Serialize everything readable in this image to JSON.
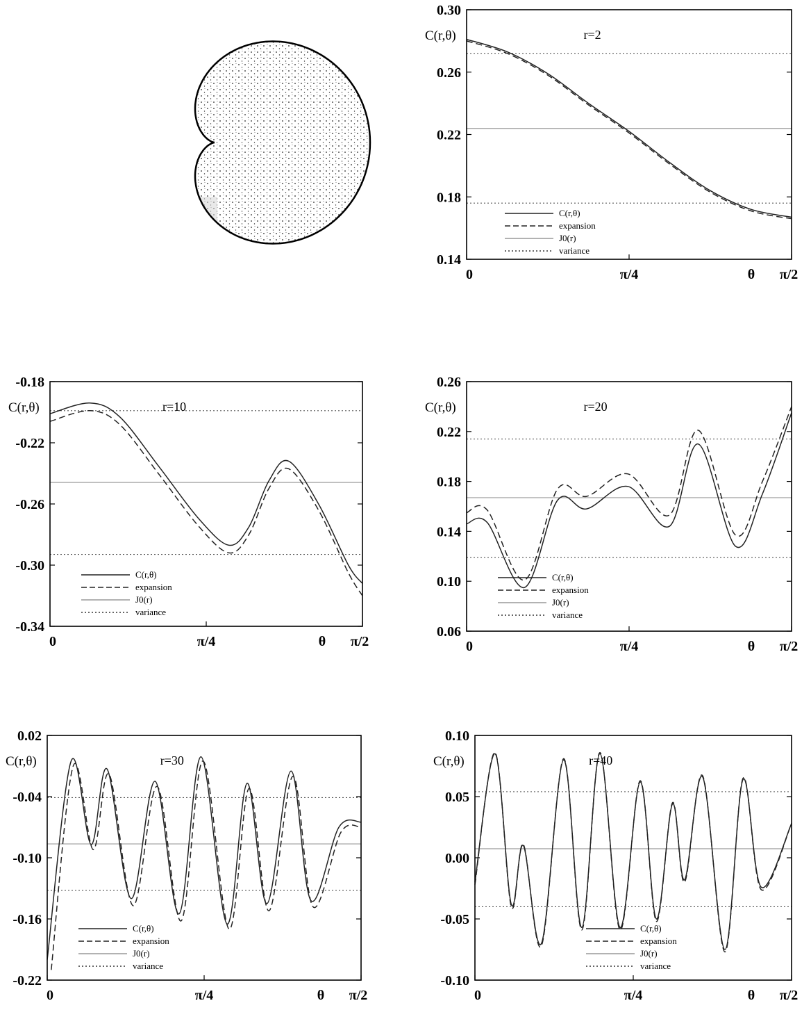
{
  "figure": {
    "cardioid_label": "cardioid billiard figure"
  },
  "chart_data": [
    {
      "id": "r2",
      "type": "line",
      "panel_label": "r=2",
      "ylabel": "C(r,θ)",
      "xlabel": "θ",
      "x_ticks": [
        "0",
        "π/4",
        "π/2"
      ],
      "y_ticks": [
        "0.30",
        "0.26",
        "0.22",
        "0.18",
        "0.14"
      ],
      "xlim": [
        0,
        1.5708
      ],
      "ylim": [
        0.14,
        0.3
      ],
      "hlines": {
        "j0": 0.2239,
        "variance": [
          0.272,
          0.176
        ]
      },
      "legend": [
        "C(r,θ)",
        "expansion",
        "J0(r)",
        "variance"
      ],
      "series": [
        {
          "name": "C(r,θ)",
          "style": "solid",
          "x": [
            0,
            0.1963,
            0.3927,
            0.589,
            0.7854,
            0.9817,
            1.178,
            1.3744,
            1.5708
          ],
          "y": [
            0.281,
            0.273,
            0.259,
            0.24,
            0.222,
            0.202,
            0.184,
            0.172,
            0.167
          ]
        },
        {
          "name": "expansion",
          "style": "dashed",
          "x": [
            0,
            0.1963,
            0.3927,
            0.589,
            0.7854,
            0.9817,
            1.178,
            1.3744,
            1.5708
          ],
          "y": [
            0.28,
            0.272,
            0.258,
            0.239,
            0.221,
            0.201,
            0.183,
            0.171,
            0.166
          ]
        }
      ]
    },
    {
      "id": "r10",
      "type": "line",
      "panel_label": "r=10",
      "ylabel": "C(r,θ)",
      "xlabel": "θ",
      "x_ticks": [
        "0",
        "π/4",
        "π/2"
      ],
      "y_ticks": [
        "-0.18",
        "-0.22",
        "-0.26",
        "-0.30",
        "-0.34"
      ],
      "xlim": [
        0,
        1.5708
      ],
      "ylim": [
        -0.34,
        -0.18
      ],
      "hlines": {
        "j0": -0.2459,
        "variance": [
          -0.199,
          -0.293
        ]
      },
      "legend": [
        "C(r,θ)",
        "expansion",
        "J0(r)",
        "variance"
      ],
      "series": [
        {
          "name": "C(r,θ)",
          "style": "solid",
          "x": [
            0,
            0.2,
            0.35,
            0.55,
            0.75,
            0.9,
            1.0,
            1.1,
            1.2,
            1.35,
            1.5,
            1.5708
          ],
          "y": [
            -0.201,
            -0.194,
            -0.203,
            -0.236,
            -0.27,
            -0.287,
            -0.275,
            -0.245,
            -0.232,
            -0.26,
            -0.3,
            -0.312
          ]
        },
        {
          "name": "expansion",
          "style": "dashed",
          "x": [
            0,
            0.2,
            0.35,
            0.55,
            0.75,
            0.9,
            1.0,
            1.1,
            1.2,
            1.35,
            1.5,
            1.5708
          ],
          "y": [
            -0.206,
            -0.199,
            -0.208,
            -0.241,
            -0.275,
            -0.292,
            -0.28,
            -0.25,
            -0.237,
            -0.264,
            -0.305,
            -0.32
          ]
        }
      ]
    },
    {
      "id": "r20",
      "type": "line",
      "panel_label": "r=20",
      "ylabel": "C(r,θ)",
      "xlabel": "θ",
      "x_ticks": [
        "0",
        "π/4",
        "π/2"
      ],
      "y_ticks": [
        "0.26",
        "0.22",
        "0.18",
        "0.14",
        "0.10",
        "0.06"
      ],
      "xlim": [
        0,
        1.5708
      ],
      "ylim": [
        0.06,
        0.26
      ],
      "hlines": {
        "j0": 0.167,
        "variance": [
          0.214,
          0.119
        ]
      },
      "legend": [
        "C(r,θ)",
        "expansion",
        "J0(r)",
        "variance"
      ],
      "series": [
        {
          "name": "C(r,θ)",
          "style": "solid",
          "x": [
            0,
            0.1,
            0.28,
            0.44,
            0.58,
            0.78,
            0.98,
            1.12,
            1.3,
            1.43,
            1.5708
          ],
          "y": [
            0.146,
            0.147,
            0.095,
            0.165,
            0.158,
            0.176,
            0.144,
            0.21,
            0.128,
            0.17,
            0.235
          ]
        },
        {
          "name": "expansion",
          "style": "dashed",
          "x": [
            0,
            0.1,
            0.28,
            0.44,
            0.58,
            0.78,
            0.98,
            1.12,
            1.3,
            1.43,
            1.5708
          ],
          "y": [
            0.155,
            0.157,
            0.101,
            0.174,
            0.168,
            0.186,
            0.153,
            0.221,
            0.137,
            0.18,
            0.24
          ]
        }
      ]
    },
    {
      "id": "r30",
      "type": "line",
      "panel_label": "r=30",
      "ylabel": "C(r,θ)",
      "xlabel": "θ",
      "x_ticks": [
        "0",
        "π/4",
        "π/2"
      ],
      "y_ticks": [
        "0.02",
        "-0.04",
        "-0.10",
        "-0.16",
        "-0.22"
      ],
      "xlim": [
        0,
        1.5708
      ],
      "ylim": [
        -0.22,
        0.02
      ],
      "hlines": {
        "j0": -0.0864,
        "variance": [
          -0.041,
          -0.132
        ]
      },
      "legend": [
        "C(r,θ)",
        "expansion",
        "J0(r)",
        "variance"
      ],
      "series": [
        {
          "name": "C(r,θ)",
          "style": "solid",
          "x": [
            0,
            0.12,
            0.22,
            0.3,
            0.42,
            0.54,
            0.66,
            0.77,
            0.9,
            1.0,
            1.1,
            1.22,
            1.32,
            1.46,
            1.5708
          ],
          "y": [
            -0.2,
            -0.005,
            -0.087,
            -0.013,
            -0.14,
            -0.025,
            -0.155,
            -0.001,
            -0.165,
            -0.027,
            -0.145,
            -0.015,
            -0.142,
            -0.07,
            -0.065
          ]
        },
        {
          "name": "expansion",
          "style": "dashed",
          "x": [
            0.02,
            0.13,
            0.23,
            0.31,
            0.43,
            0.55,
            0.67,
            0.78,
            0.91,
            1.01,
            1.11,
            1.23,
            1.33,
            1.47,
            1.5708
          ],
          "y": [
            -0.21,
            -0.01,
            -0.092,
            -0.018,
            -0.147,
            -0.03,
            -0.162,
            -0.005,
            -0.17,
            -0.032,
            -0.152,
            -0.02,
            -0.148,
            -0.075,
            -0.07
          ]
        }
      ]
    },
    {
      "id": "r40",
      "type": "line",
      "panel_label": "r=40",
      "ylabel": "C(r,θ)",
      "xlabel": "θ",
      "x_ticks": [
        "0",
        "π/4",
        "π/2"
      ],
      "y_ticks": [
        "0.10",
        "0.05",
        "0.00",
        "-0.05",
        "-0.10"
      ],
      "xlim": [
        0,
        1.5708
      ],
      "ylim": [
        -0.1,
        0.1
      ],
      "hlines": {
        "j0": 0.0074,
        "variance": [
          0.054,
          -0.04
        ]
      },
      "legend": [
        "C(r,θ)",
        "expansion",
        "J0(r)",
        "variance"
      ],
      "series": [
        {
          "name": "C(r,θ)",
          "style": "solid",
          "x": [
            0,
            0.1,
            0.18,
            0.24,
            0.33,
            0.44,
            0.53,
            0.62,
            0.72,
            0.82,
            0.9,
            0.98,
            1.04,
            1.13,
            1.24,
            1.33,
            1.42,
            1.5708
          ],
          "y": [
            -0.02,
            0.085,
            -0.038,
            0.01,
            -0.07,
            0.08,
            -0.057,
            0.085,
            -0.057,
            0.062,
            -0.05,
            0.044,
            -0.018,
            0.066,
            -0.075,
            0.064,
            -0.024,
            0.028
          ]
        },
        {
          "name": "expansion",
          "style": "dashed",
          "x": [
            0,
            0.1,
            0.18,
            0.24,
            0.33,
            0.44,
            0.53,
            0.62,
            0.72,
            0.82,
            0.9,
            0.98,
            1.04,
            1.13,
            1.24,
            1.33,
            1.42,
            1.5708
          ],
          "y": [
            -0.022,
            0.086,
            -0.04,
            0.011,
            -0.072,
            0.081,
            -0.059,
            0.086,
            -0.059,
            0.063,
            -0.052,
            0.045,
            -0.02,
            0.067,
            -0.077,
            0.065,
            -0.026,
            0.028
          ]
        }
      ]
    }
  ]
}
